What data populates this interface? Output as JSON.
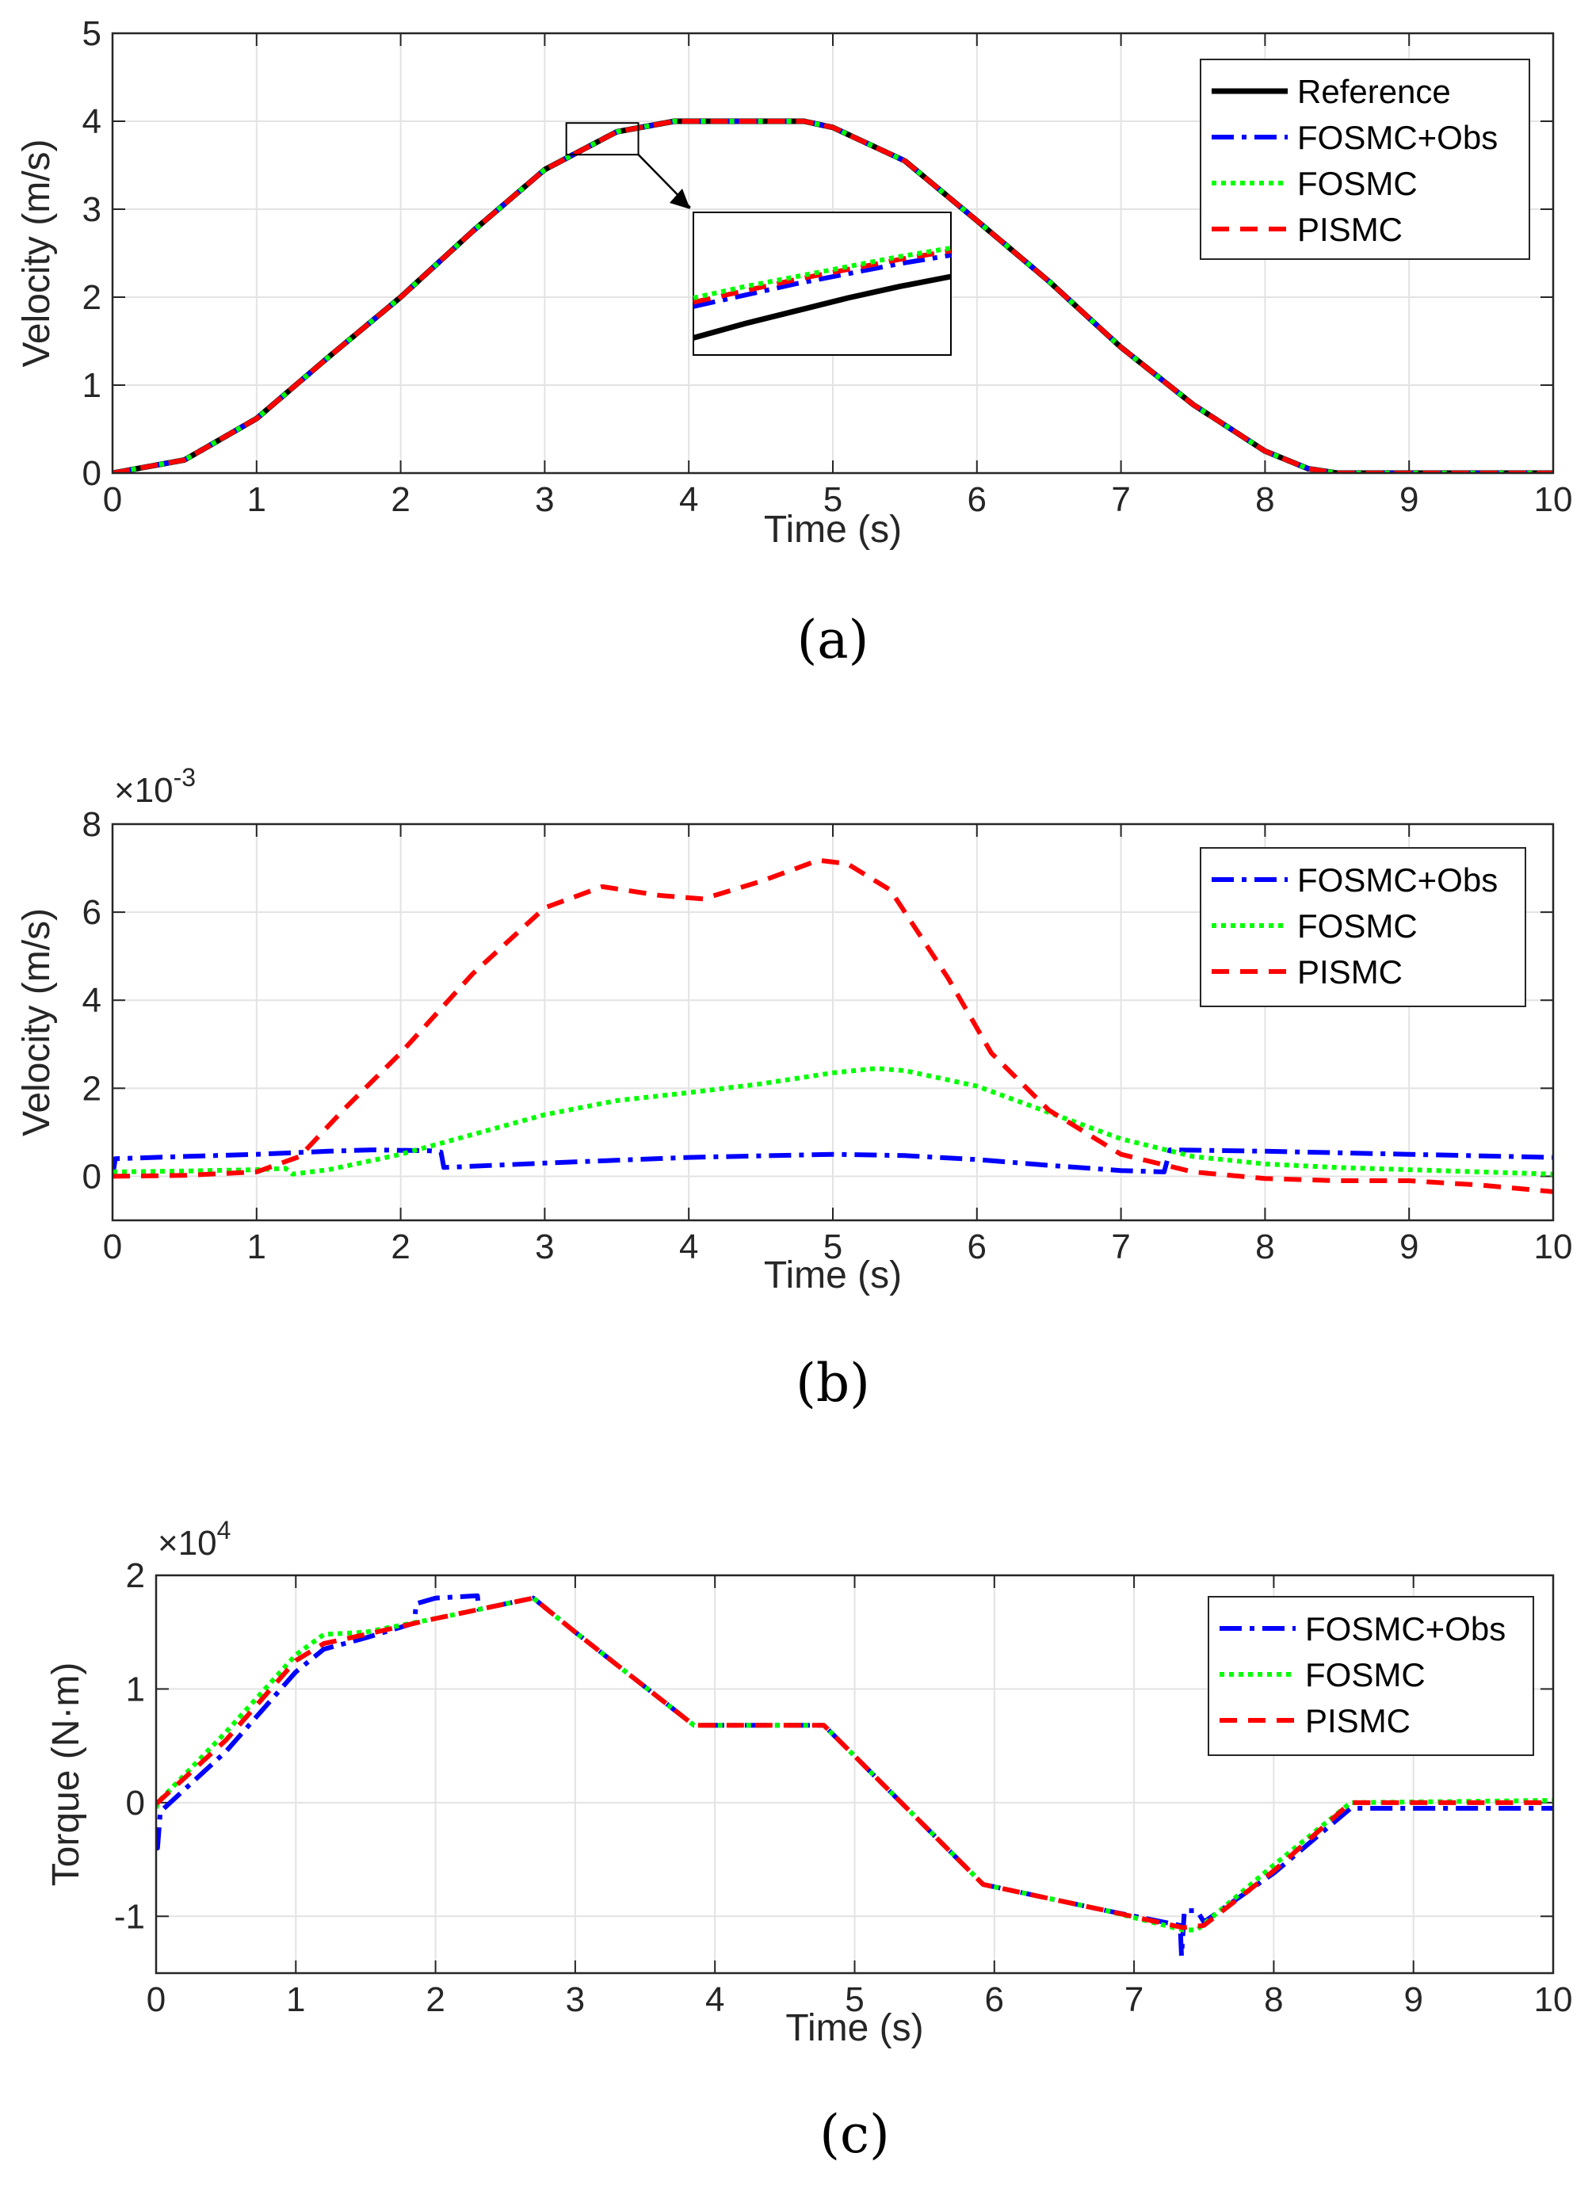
{
  "colors": {
    "reference": "#000000",
    "fosmc_obs": "#0000ff",
    "fosmc": "#00ff00",
    "pismc": "#ff0000",
    "grid": "#e3e3e3",
    "axis": "#262626"
  },
  "chart_data": [
    {
      "id": "a",
      "type": "line",
      "caption": "(a)",
      "xlabel": "Time (s)",
      "ylabel": "Velocity (m/s)",
      "exponent": "",
      "xlim": [
        0,
        10
      ],
      "ylim": [
        0,
        5
      ],
      "xticks": [
        "0",
        "1",
        "2",
        "3",
        "4",
        "5",
        "6",
        "7",
        "8",
        "9",
        "10"
      ],
      "yticks": [
        "0",
        "1",
        "2",
        "3",
        "4",
        "5"
      ],
      "grid": true,
      "legend_position": "top-right",
      "legend": [
        "Reference",
        "FOSMC+Obs",
        "FOSMC",
        "PISMC"
      ],
      "inset": {
        "source_x": [
          3.15,
          3.65
        ],
        "source_y": [
          3.62,
          3.98
        ],
        "curves": {
          "reference": [
            [
              0,
              0.88
            ],
            [
              0.2,
              0.78
            ],
            [
              0.4,
              0.69
            ],
            [
              0.6,
              0.6
            ],
            [
              0.8,
              0.52
            ],
            [
              1,
              0.45
            ]
          ],
          "fosmc_obs": [
            [
              0,
              0.66
            ],
            [
              0.2,
              0.58
            ],
            [
              0.4,
              0.5
            ],
            [
              0.6,
              0.43
            ],
            [
              0.8,
              0.36
            ],
            [
              1,
              0.3
            ]
          ],
          "fosmc": [
            [
              0,
              0.6
            ],
            [
              0.2,
              0.52
            ],
            [
              0.4,
              0.45
            ],
            [
              0.6,
              0.38
            ],
            [
              0.8,
              0.31
            ],
            [
              1,
              0.25
            ]
          ],
          "pismc": [
            [
              0,
              0.63
            ],
            [
              0.2,
              0.55
            ],
            [
              0.4,
              0.47
            ],
            [
              0.6,
              0.4
            ],
            [
              0.8,
              0.33
            ],
            [
              1,
              0.27
            ]
          ]
        }
      },
      "series": [
        {
          "name": "Reference",
          "key": "reference",
          "dash": "",
          "x": [
            0,
            0.5,
            1,
            1.5,
            2,
            2.5,
            3,
            3.5,
            3.9,
            4,
            4.5,
            4.8,
            5,
            5.5,
            6,
            6.5,
            7,
            7.5,
            8,
            8.3,
            8.5,
            9,
            10
          ],
          "y": [
            0,
            0.15,
            0.62,
            1.32,
            2.0,
            2.75,
            3.45,
            3.88,
            4.0,
            4.0,
            4.0,
            4.0,
            3.93,
            3.55,
            2.87,
            2.18,
            1.43,
            0.78,
            0.25,
            0.05,
            0,
            0,
            0
          ]
        },
        {
          "name": "FOSMC+Obs",
          "key": "fosmc_obs",
          "dash": "26 10 6 10",
          "x": [
            0,
            0.5,
            1,
            1.5,
            2,
            2.5,
            3,
            3.5,
            3.9,
            4,
            4.5,
            4.8,
            5,
            5.5,
            6,
            6.5,
            7,
            7.5,
            8,
            8.3,
            8.5,
            9,
            10
          ],
          "y": [
            0,
            0.15,
            0.62,
            1.32,
            2.0,
            2.75,
            3.45,
            3.88,
            4.0,
            4.0,
            4.0,
            4.0,
            3.93,
            3.55,
            2.87,
            2.18,
            1.43,
            0.78,
            0.25,
            0.05,
            0,
            0,
            0
          ]
        },
        {
          "name": "FOSMC",
          "key": "fosmc",
          "dash": "6 6",
          "x": [
            0,
            0.5,
            1,
            1.5,
            2,
            2.5,
            3,
            3.5,
            3.9,
            4,
            4.5,
            4.8,
            5,
            5.5,
            6,
            6.5,
            7,
            7.5,
            8,
            8.3,
            8.5,
            9,
            10
          ],
          "y": [
            0,
            0.15,
            0.62,
            1.32,
            2.0,
            2.75,
            3.45,
            3.88,
            4.0,
            4.0,
            4.0,
            4.0,
            3.93,
            3.55,
            2.87,
            2.18,
            1.43,
            0.78,
            0.25,
            0.05,
            0,
            0,
            0
          ]
        },
        {
          "name": "PISMC",
          "key": "pismc",
          "dash": "22 14",
          "x": [
            0,
            0.5,
            1,
            1.5,
            2,
            2.5,
            3,
            3.5,
            3.9,
            4,
            4.5,
            4.8,
            5,
            5.5,
            6,
            6.5,
            7,
            7.5,
            8,
            8.3,
            8.5,
            9,
            10
          ],
          "y": [
            0,
            0.15,
            0.62,
            1.32,
            2.0,
            2.75,
            3.45,
            3.88,
            4.0,
            4.0,
            4.0,
            4.0,
            3.93,
            3.55,
            2.87,
            2.18,
            1.43,
            0.78,
            0.25,
            0.05,
            0,
            0,
            0
          ]
        }
      ]
    },
    {
      "id": "b",
      "type": "line",
      "caption": "(b)",
      "xlabel": "Time (s)",
      "ylabel": "Velocity (m/s)",
      "exponent": "×10",
      "exponent_power": "-3",
      "xlim": [
        0,
        10
      ],
      "ylim": [
        -1,
        8
      ],
      "xticks": [
        "0",
        "1",
        "2",
        "3",
        "4",
        "5",
        "6",
        "7",
        "8",
        "9",
        "10"
      ],
      "yticks": [
        "0",
        "2",
        "4",
        "6",
        "8"
      ],
      "ytick_values": [
        0,
        2,
        4,
        6,
        8
      ],
      "grid": true,
      "legend_position": "top-right",
      "legend": [
        "FOSMC+Obs",
        "FOSMC",
        "PISMC"
      ],
      "series": [
        {
          "name": "FOSMC+Obs",
          "key": "fosmc_obs",
          "dash": "26 10 6 10",
          "x": [
            0,
            0.02,
            0.5,
            1,
            1.5,
            1.8,
            2.2,
            2.28,
            2.3,
            3,
            4,
            5,
            5.5,
            6,
            6.5,
            7,
            7.3,
            7.32,
            7.34,
            8,
            9,
            10
          ],
          "y": [
            0,
            0.4,
            0.45,
            0.5,
            0.57,
            0.6,
            0.58,
            0.55,
            0.2,
            0.3,
            0.43,
            0.5,
            0.47,
            0.38,
            0.25,
            0.13,
            0.1,
            0.35,
            0.6,
            0.57,
            0.5,
            0.43
          ]
        },
        {
          "name": "FOSMC",
          "key": "fosmc",
          "dash": "6 6",
          "x": [
            0,
            0.5,
            1,
            1.2,
            1.25,
            1.5,
            2,
            2.5,
            3,
            3.5,
            4,
            4.5,
            5,
            5.3,
            5.5,
            6,
            6.5,
            7,
            7.5,
            8,
            8.5,
            9,
            9.5,
            10
          ],
          "y": [
            0.1,
            0.12,
            0.15,
            0.18,
            0.05,
            0.15,
            0.5,
            0.95,
            1.4,
            1.72,
            1.9,
            2.1,
            2.35,
            2.45,
            2.4,
            2.05,
            1.45,
            0.85,
            0.45,
            0.28,
            0.2,
            0.15,
            0.1,
            0.05
          ]
        },
        {
          "name": "PISMC",
          "key": "pismc",
          "dash": "22 14",
          "x": [
            0,
            0.5,
            1,
            1.3,
            1.6,
            2,
            2.5,
            3,
            3.4,
            3.8,
            4.1,
            4.5,
            4.9,
            5.1,
            5.4,
            5.8,
            6.1,
            6.5,
            7,
            7.5,
            8,
            8.5,
            9,
            9.5,
            10
          ],
          "y": [
            0,
            0.02,
            0.1,
            0.45,
            1.5,
            2.8,
            4.6,
            6.1,
            6.58,
            6.38,
            6.3,
            6.7,
            7.18,
            7.1,
            6.5,
            4.5,
            2.8,
            1.5,
            0.5,
            0.1,
            -0.05,
            -0.1,
            -0.1,
            -0.2,
            -0.35
          ]
        }
      ]
    },
    {
      "id": "c",
      "type": "line",
      "caption": "(c)",
      "xlabel": "Time (s)",
      "ylabel": "Torque (N·m)",
      "exponent": "×10",
      "exponent_power": "4",
      "xlim": [
        0,
        10
      ],
      "ylim": [
        -1.5,
        2
      ],
      "xticks": [
        "0",
        "1",
        "2",
        "3",
        "4",
        "5",
        "6",
        "7",
        "8",
        "9",
        "10"
      ],
      "yticks": [
        "-1",
        "0",
        "1",
        "2"
      ],
      "ytick_values": [
        -1,
        0,
        1,
        2
      ],
      "grid": true,
      "legend_position": "top-right",
      "legend": [
        "FOSMC+Obs",
        "FOSMC",
        "PISMC"
      ],
      "series": [
        {
          "name": "FOSMC+Obs",
          "key": "fosmc_obs",
          "dash": "26 10 6 10",
          "x": [
            0,
            0.01,
            0.03,
            0.5,
            1,
            1.2,
            1.5,
            1.85,
            1.86,
            2.0,
            2.3,
            2.31,
            2.7,
            3.0,
            3.85,
            4.78,
            5.92,
            6.8,
            7.33,
            7.34,
            7.36,
            7.38,
            7.45,
            7.5,
            8.0,
            8.55,
            10
          ],
          "y": [
            -0.4,
            -0.4,
            -0.08,
            0.45,
            1.15,
            1.35,
            1.45,
            1.58,
            1.75,
            1.8,
            1.82,
            1.7,
            1.8,
            1.5,
            0.68,
            0.68,
            -0.72,
            -0.95,
            -1.08,
            -1.35,
            -0.95,
            -0.95,
            -0.95,
            -1.05,
            -0.62,
            -0.05,
            -0.05
          ]
        },
        {
          "name": "FOSMC",
          "key": "fosmc",
          "dash": "6 6",
          "x": [
            0,
            0.01,
            0.5,
            1,
            1.2,
            1.5,
            2.0,
            2.7,
            3.0,
            3.85,
            4.78,
            5.92,
            6.8,
            7.35,
            7.45,
            8.0,
            8.55,
            10
          ],
          "y": [
            -0.05,
            0,
            0.62,
            1.3,
            1.48,
            1.5,
            1.62,
            1.8,
            1.5,
            0.68,
            0.68,
            -0.72,
            -0.95,
            -1.12,
            -1.12,
            -0.55,
            0,
            0.02
          ]
        },
        {
          "name": "PISMC",
          "key": "pismc",
          "dash": "22 14",
          "x": [
            0,
            0.01,
            0.5,
            1,
            1.2,
            1.5,
            2.0,
            2.7,
            3.0,
            3.85,
            4.78,
            5.92,
            6.8,
            7.35,
            7.5,
            8.0,
            8.55,
            10
          ],
          "y": [
            0,
            0,
            0.55,
            1.25,
            1.4,
            1.48,
            1.62,
            1.8,
            1.5,
            0.68,
            0.68,
            -0.72,
            -0.95,
            -1.1,
            -1.08,
            -0.6,
            0,
            0
          ]
        }
      ]
    }
  ]
}
